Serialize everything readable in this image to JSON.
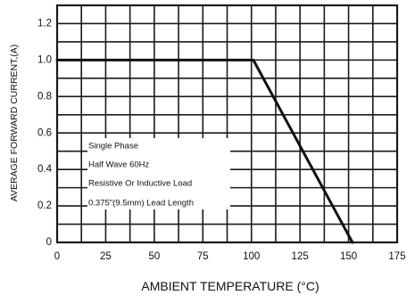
{
  "chart_data": {
    "type": "line",
    "title": "",
    "xlabel": "AMBIENT TEMPERATURE (°C)",
    "ylabel": "AVERAGE FORWARD CURRENT,(A)",
    "xlim": [
      0,
      175
    ],
    "ylim": [
      0,
      1.3
    ],
    "x_ticks": [
      0,
      25,
      50,
      75,
      100,
      125,
      150,
      175
    ],
    "x_tick_labels": [
      "0",
      "25",
      "50",
      "75",
      "100",
      "125",
      "150",
      "175"
    ],
    "y_ticks": [
      0,
      0.2,
      0.4,
      0.6,
      0.8,
      1.0,
      1.2
    ],
    "y_tick_labels": [
      "0",
      "0.2",
      "0.4",
      "0.6",
      "0.8",
      "1.0",
      "1.2"
    ],
    "grid": true,
    "grid_x_step": 12.5,
    "grid_y_step": 0.1,
    "series": [
      {
        "x": [
          0,
          101,
          152
        ],
        "y": [
          1.0,
          1.0,
          0
        ]
      }
    ],
    "annotations": [
      "Single Phase",
      "Half Wave 60Hz",
      "Resistive Or Inductive Load",
      "0.375\"(9.5mm) Lead Length"
    ],
    "line_color": "#111111",
    "grid_color": "#1a1a1a"
  }
}
